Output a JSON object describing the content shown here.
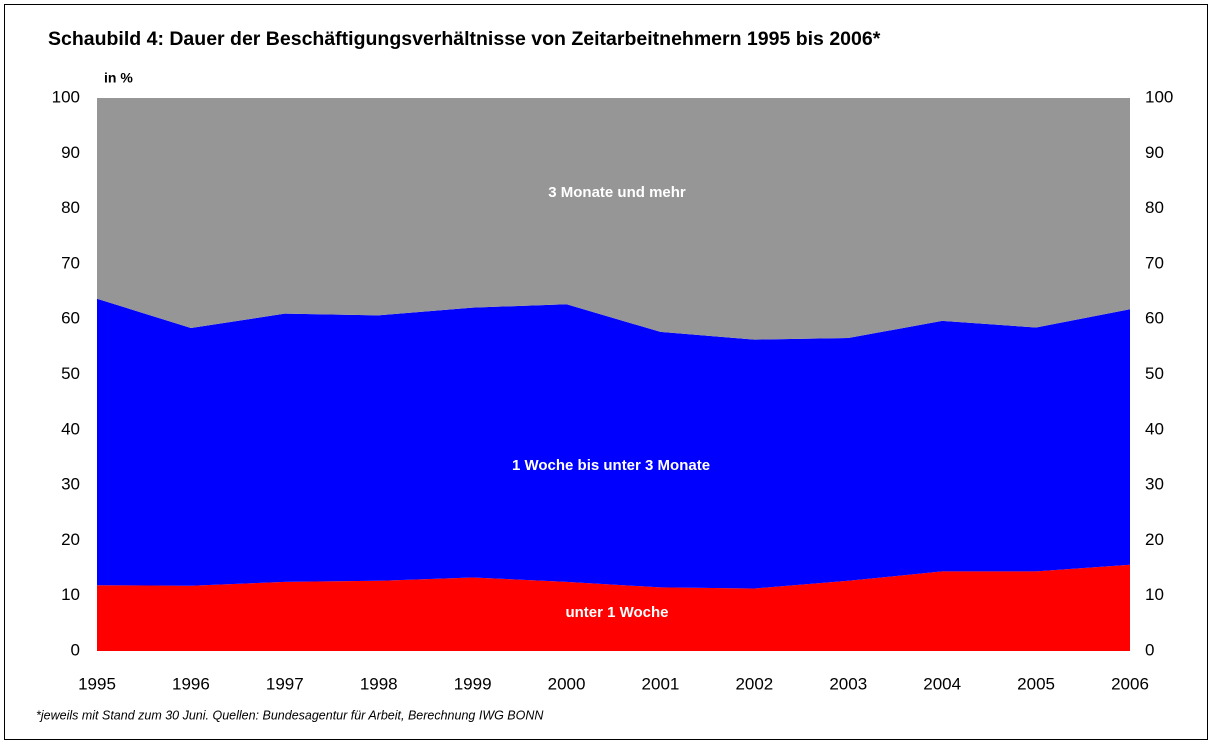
{
  "chart_data": {
    "type": "area",
    "stacked": true,
    "title": "Schaubild 4: Dauer der Beschäftigungsverhältnisse von Zeitarbeitnehmern 1995 bis 2006*",
    "y_label": "in %",
    "footnote": "*jeweils mit Stand zum 30 Juni. Quellen: Bundesagentur für Arbeit, Berechnung IWG BONN",
    "x": [
      1995,
      1996,
      1997,
      1998,
      1999,
      2000,
      2001,
      2002,
      2003,
      2004,
      2005,
      2006
    ],
    "xlim": [
      1995,
      2006
    ],
    "series": [
      {
        "name": "unter 1 Woche",
        "color": "#ff0000",
        "values": [
          11.9,
          11.8,
          12.5,
          12.7,
          13.3,
          12.5,
          11.5,
          11.3,
          12.7,
          14.4,
          14.4,
          15.6
        ]
      },
      {
        "name": "1 Woche bis unter 3 Monate",
        "color": "#0000ff",
        "values": [
          51.8,
          46.6,
          48.5,
          48.0,
          48.8,
          50.2,
          46.2,
          45.0,
          43.9,
          45.3,
          44.1,
          46.2
        ]
      },
      {
        "name": "3 Monate und mehr",
        "color": "#969696",
        "values": [
          36.3,
          41.6,
          39.0,
          39.3,
          37.9,
          37.3,
          42.3,
          43.7,
          43.4,
          40.3,
          41.5,
          38.2
        ]
      }
    ],
    "ylim": [
      0,
      100
    ],
    "yticks": [
      0,
      10,
      20,
      30,
      40,
      50,
      60,
      70,
      80,
      90,
      100
    ],
    "y2lim": [
      0,
      100
    ],
    "y2ticks": [
      0,
      10,
      20,
      30,
      40,
      50,
      60,
      70,
      80,
      90,
      100
    ]
  }
}
